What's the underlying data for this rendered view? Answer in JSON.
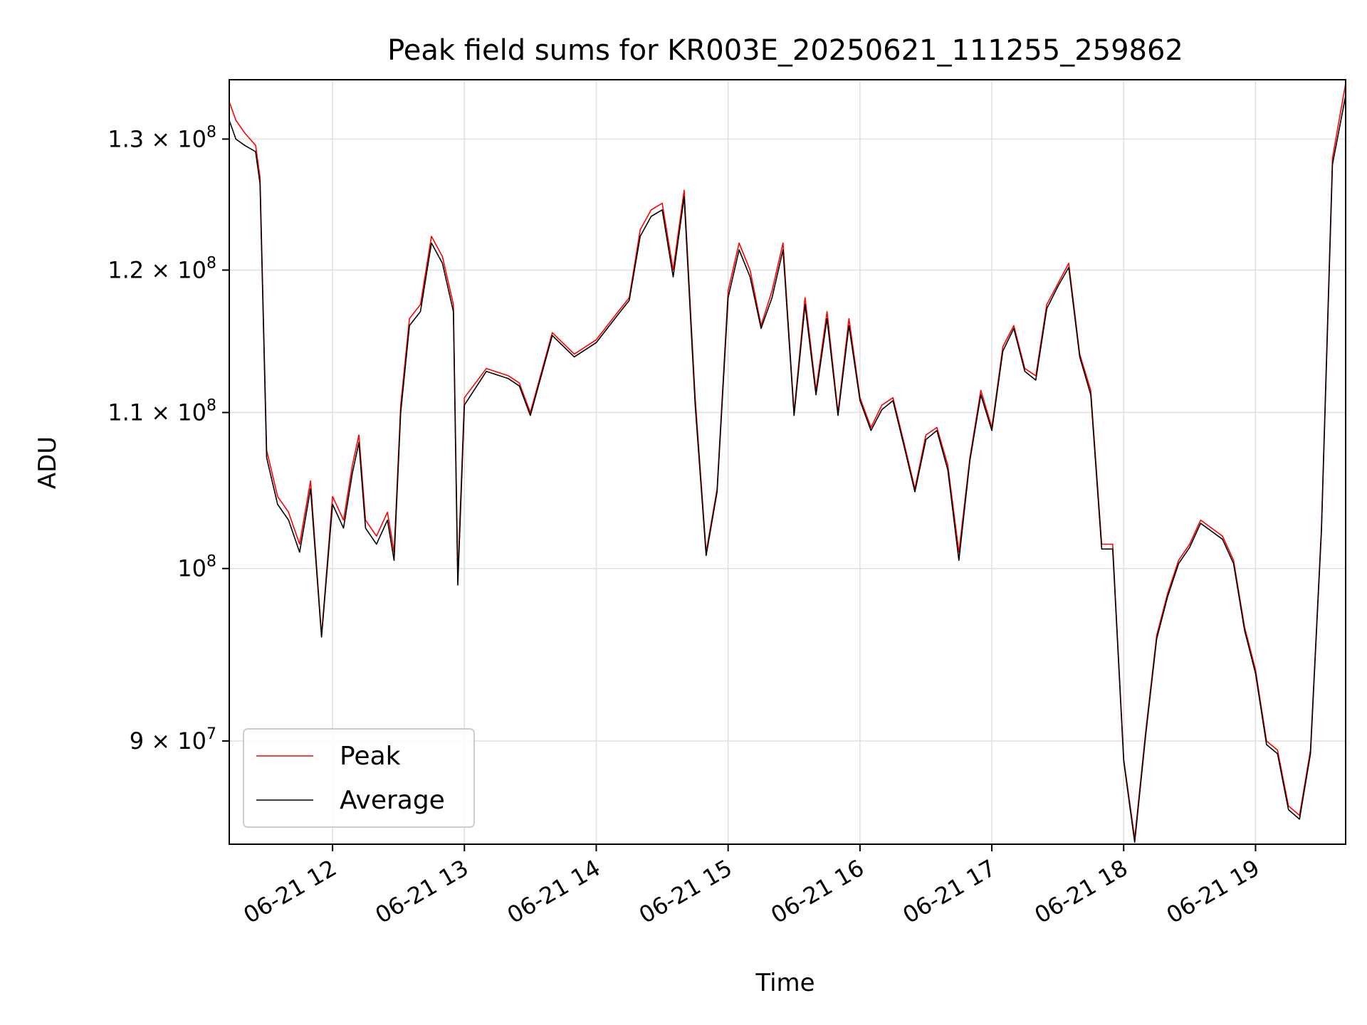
{
  "chart_data": {
    "type": "line",
    "title": "Peak field sums for KR003E_20250621_111255_259862",
    "xlabel": "Time",
    "ylabel": "ADU",
    "y_scale": "log",
    "xlim": [
      "2025-06-21 11:13",
      "2025-06-21 19:41"
    ],
    "ylim": [
      84500000,
      134800000
    ],
    "grid": true,
    "legend_position": "lower-left",
    "x_ticks": [
      {
        "value": "2025-06-21 12:00",
        "label": "06-21 12"
      },
      {
        "value": "2025-06-21 13:00",
        "label": "06-21 13"
      },
      {
        "value": "2025-06-21 14:00",
        "label": "06-21 14"
      },
      {
        "value": "2025-06-21 15:00",
        "label": "06-21 15"
      },
      {
        "value": "2025-06-21 16:00",
        "label": "06-21 16"
      },
      {
        "value": "2025-06-21 17:00",
        "label": "06-21 17"
      },
      {
        "value": "2025-06-21 18:00",
        "label": "06-21 18"
      },
      {
        "value": "2025-06-21 19:00",
        "label": "06-21 19"
      }
    ],
    "y_ticks": [
      {
        "value": 90000000,
        "base": "9 × 10",
        "exp": "7"
      },
      {
        "value": 100000000,
        "base": "10",
        "exp": "8"
      },
      {
        "value": 110000000,
        "base": "1.1 × 10",
        "exp": "8"
      },
      {
        "value": 120000000,
        "base": "1.2 × 10",
        "exp": "8"
      },
      {
        "value": 130000000,
        "base": "1.3 × 10",
        "exp": "8"
      }
    ],
    "series": [
      {
        "name": "Peak",
        "color": "#ff0000",
        "x": [
          "2025-06-21 11:13",
          "2025-06-21 11:16",
          "2025-06-21 11:20",
          "2025-06-21 11:25",
          "2025-06-21 11:27",
          "2025-06-21 11:30",
          "2025-06-21 11:35",
          "2025-06-21 11:40",
          "2025-06-21 11:45",
          "2025-06-21 11:50",
          "2025-06-21 11:55",
          "2025-06-21 12:00",
          "2025-06-21 12:05",
          "2025-06-21 12:09",
          "2025-06-21 12:12",
          "2025-06-21 12:15",
          "2025-06-21 12:20",
          "2025-06-21 12:25",
          "2025-06-21 12:28",
          "2025-06-21 12:31",
          "2025-06-21 12:35",
          "2025-06-21 12:40",
          "2025-06-21 12:45",
          "2025-06-21 12:50",
          "2025-06-21 12:55",
          "2025-06-21 12:57",
          "2025-06-21 13:00",
          "2025-06-21 13:10",
          "2025-06-21 13:20",
          "2025-06-21 13:25",
          "2025-06-21 13:30",
          "2025-06-21 13:40",
          "2025-06-21 13:50",
          "2025-06-21 14:00",
          "2025-06-21 14:10",
          "2025-06-21 14:15",
          "2025-06-21 14:20",
          "2025-06-21 14:25",
          "2025-06-21 14:30",
          "2025-06-21 14:35",
          "2025-06-21 14:40",
          "2025-06-21 14:45",
          "2025-06-21 14:50",
          "2025-06-21 14:55",
          "2025-06-21 15:00",
          "2025-06-21 15:05",
          "2025-06-21 15:10",
          "2025-06-21 15:15",
          "2025-06-21 15:20",
          "2025-06-21 15:25",
          "2025-06-21 15:30",
          "2025-06-21 15:35",
          "2025-06-21 15:40",
          "2025-06-21 15:45",
          "2025-06-21 15:50",
          "2025-06-21 15:55",
          "2025-06-21 16:00",
          "2025-06-21 16:05",
          "2025-06-21 16:10",
          "2025-06-21 16:15",
          "2025-06-21 16:20",
          "2025-06-21 16:25",
          "2025-06-21 16:30",
          "2025-06-21 16:35",
          "2025-06-21 16:40",
          "2025-06-21 16:45",
          "2025-06-21 16:50",
          "2025-06-21 16:55",
          "2025-06-21 17:00",
          "2025-06-21 17:05",
          "2025-06-21 17:10",
          "2025-06-21 17:15",
          "2025-06-21 17:20",
          "2025-06-21 17:25",
          "2025-06-21 17:30",
          "2025-06-21 17:35",
          "2025-06-21 17:40",
          "2025-06-21 17:45",
          "2025-06-21 17:50",
          "2025-06-21 17:55",
          "2025-06-21 18:00",
          "2025-06-21 18:05",
          "2025-06-21 18:10",
          "2025-06-21 18:15",
          "2025-06-21 18:20",
          "2025-06-21 18:25",
          "2025-06-21 18:30",
          "2025-06-21 18:35",
          "2025-06-21 18:40",
          "2025-06-21 18:45",
          "2025-06-21 18:50",
          "2025-06-21 18:55",
          "2025-06-21 19:00",
          "2025-06-21 19:05",
          "2025-06-21 19:10",
          "2025-06-21 19:15",
          "2025-06-21 19:20",
          "2025-06-21 19:25",
          "2025-06-21 19:30",
          "2025-06-21 19:35",
          "2025-06-21 19:41"
        ],
        "values": [
          133000000,
          131500000,
          130500000,
          129500000,
          127000000,
          107500000,
          104500000,
          103500000,
          101500000,
          105500000,
          96000000,
          104500000,
          103000000,
          106500000,
          108500000,
          103000000,
          102000000,
          103500000,
          101000000,
          110500000,
          116500000,
          117500000,
          122500000,
          121000000,
          117500000,
          99500000,
          111000000,
          113000000,
          112500000,
          112000000,
          110000000,
          115500000,
          114000000,
          115000000,
          117000000,
          118000000,
          123000000,
          124500000,
          125000000,
          120000000,
          126000000,
          111000000,
          101000000,
          105000000,
          118500000,
          122000000,
          120000000,
          116000000,
          118500000,
          122000000,
          110000000,
          118000000,
          111500000,
          117000000,
          110000000,
          116500000,
          111000000,
          109000000,
          110500000,
          111000000,
          108000000,
          105000000,
          108500000,
          109000000,
          106500000,
          101000000,
          107000000,
          111500000,
          109000000,
          114500000,
          116000000,
          113000000,
          112500000,
          117500000,
          119000000,
          120500000,
          114000000,
          111500000,
          101500000,
          101500000,
          89000000,
          84800000,
          90500000,
          96000000,
          98500000,
          100500000,
          101500000,
          103000000,
          102500000,
          102000000,
          100500000,
          96500000,
          94000000,
          90000000,
          89500000,
          86500000,
          86000000,
          89500000,
          102500000,
          128500000,
          134500000
        ]
      },
      {
        "name": "Average",
        "color": "#000000",
        "x": [
          "2025-06-21 11:13",
          "2025-06-21 11:16",
          "2025-06-21 11:20",
          "2025-06-21 11:25",
          "2025-06-21 11:27",
          "2025-06-21 11:30",
          "2025-06-21 11:35",
          "2025-06-21 11:40",
          "2025-06-21 11:45",
          "2025-06-21 11:50",
          "2025-06-21 11:55",
          "2025-06-21 12:00",
          "2025-06-21 12:05",
          "2025-06-21 12:09",
          "2025-06-21 12:12",
          "2025-06-21 12:15",
          "2025-06-21 12:20",
          "2025-06-21 12:25",
          "2025-06-21 12:28",
          "2025-06-21 12:31",
          "2025-06-21 12:35",
          "2025-06-21 12:40",
          "2025-06-21 12:45",
          "2025-06-21 12:50",
          "2025-06-21 12:55",
          "2025-06-21 12:57",
          "2025-06-21 13:00",
          "2025-06-21 13:10",
          "2025-06-21 13:20",
          "2025-06-21 13:25",
          "2025-06-21 13:30",
          "2025-06-21 13:40",
          "2025-06-21 13:50",
          "2025-06-21 14:00",
          "2025-06-21 14:10",
          "2025-06-21 14:15",
          "2025-06-21 14:20",
          "2025-06-21 14:25",
          "2025-06-21 14:30",
          "2025-06-21 14:35",
          "2025-06-21 14:40",
          "2025-06-21 14:45",
          "2025-06-21 14:50",
          "2025-06-21 14:55",
          "2025-06-21 15:00",
          "2025-06-21 15:05",
          "2025-06-21 15:10",
          "2025-06-21 15:15",
          "2025-06-21 15:20",
          "2025-06-21 15:25",
          "2025-06-21 15:30",
          "2025-06-21 15:35",
          "2025-06-21 15:40",
          "2025-06-21 15:45",
          "2025-06-21 15:50",
          "2025-06-21 15:55",
          "2025-06-21 16:00",
          "2025-06-21 16:05",
          "2025-06-21 16:10",
          "2025-06-21 16:15",
          "2025-06-21 16:20",
          "2025-06-21 16:25",
          "2025-06-21 16:30",
          "2025-06-21 16:35",
          "2025-06-21 16:40",
          "2025-06-21 16:45",
          "2025-06-21 16:50",
          "2025-06-21 16:55",
          "2025-06-21 17:00",
          "2025-06-21 17:05",
          "2025-06-21 17:10",
          "2025-06-21 17:15",
          "2025-06-21 17:20",
          "2025-06-21 17:25",
          "2025-06-21 17:30",
          "2025-06-21 17:35",
          "2025-06-21 17:40",
          "2025-06-21 17:45",
          "2025-06-21 17:50",
          "2025-06-21 17:55",
          "2025-06-21 18:00",
          "2025-06-21 18:05",
          "2025-06-21 18:10",
          "2025-06-21 18:15",
          "2025-06-21 18:20",
          "2025-06-21 18:25",
          "2025-06-21 18:30",
          "2025-06-21 18:35",
          "2025-06-21 18:40",
          "2025-06-21 18:45",
          "2025-06-21 18:50",
          "2025-06-21 18:55",
          "2025-06-21 19:00",
          "2025-06-21 19:05",
          "2025-06-21 19:10",
          "2025-06-21 19:15",
          "2025-06-21 19:20",
          "2025-06-21 19:25",
          "2025-06-21 19:30",
          "2025-06-21 19:35",
          "2025-06-21 19:41"
        ],
        "values": [
          131500000,
          130000000,
          129500000,
          129000000,
          126500000,
          107000000,
          104000000,
          103000000,
          101000000,
          105000000,
          95900000,
          104000000,
          102500000,
          106000000,
          108000000,
          102500000,
          101500000,
          103000000,
          100500000,
          110000000,
          116000000,
          117000000,
          122000000,
          120500000,
          117000000,
          99000000,
          110500000,
          112800000,
          112300000,
          111800000,
          109800000,
          115300000,
          113800000,
          114800000,
          116800000,
          117800000,
          122500000,
          124000000,
          124500000,
          119500000,
          125500000,
          110500000,
          100800000,
          104800000,
          118000000,
          121500000,
          119500000,
          115800000,
          118000000,
          121500000,
          109800000,
          117500000,
          111200000,
          116500000,
          109800000,
          116000000,
          110800000,
          108800000,
          110200000,
          110800000,
          107800000,
          104800000,
          108200000,
          108800000,
          106200000,
          100500000,
          106800000,
          111200000,
          108800000,
          114200000,
          115800000,
          112800000,
          112200000,
          117200000,
          118800000,
          120200000,
          113800000,
          111200000,
          101200000,
          101200000,
          88900000,
          84600000,
          90300000,
          95800000,
          98300000,
          100300000,
          101300000,
          102800000,
          102300000,
          101800000,
          100300000,
          96300000,
          93800000,
          89800000,
          89300000,
          86300000,
          85800000,
          89300000,
          102300000,
          128000000,
          133500000
        ]
      }
    ]
  }
}
